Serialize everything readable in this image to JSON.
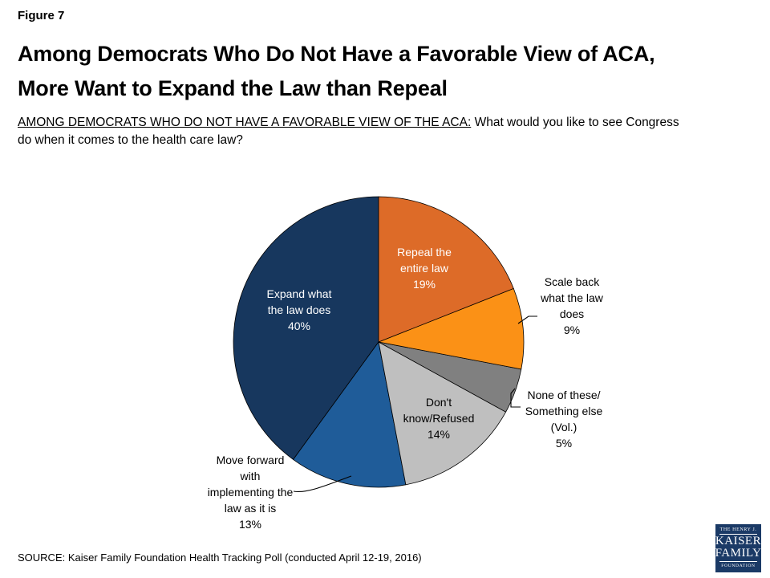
{
  "page": {
    "background": "#FFFFFF"
  },
  "header": {
    "figure_label": "Figure 7",
    "title_lines": [
      "Among Democrats Who Do Not Have a Favorable View of ACA,",
      "More Want to Expand the Law than Repeal"
    ],
    "subtitle_underlined": "AMONG DEMOCRATS WHO DO NOT HAVE A FAVORABLE VIEW OF THE ACA:",
    "subtitle_rest": " What would you like to see Congress\ndo when it comes to the health care law?"
  },
  "chart_data": {
    "type": "pie",
    "title": "",
    "unit": "%",
    "start_angle": "12 o'clock",
    "direction": "clockwise",
    "slices": [
      {
        "id": "repeal",
        "label": "Repeal the entire law",
        "value": 19,
        "color": "#DD6B28",
        "label_lines": [
          "Repeal the",
          "entire law",
          "19%"
        ],
        "label_placement": "inside",
        "label_color": "#FFFFFF"
      },
      {
        "id": "scale-back",
        "label": "Scale back what the law does",
        "value": 9,
        "color": "#FB9116",
        "label_lines": [
          "Scale back",
          "what the law",
          "does",
          "9%"
        ],
        "label_placement": "outside",
        "label_color": "#000000"
      },
      {
        "id": "none-something-else",
        "label": "None of these/Something else (Vol.)",
        "value": 5,
        "color": "#808080",
        "label_lines": [
          "None of these/",
          "Something else",
          "(Vol.)",
          "5%"
        ],
        "label_placement": "outside",
        "label_color": "#000000"
      },
      {
        "id": "dont-know-refused",
        "label": "Don't know/Refused",
        "value": 14,
        "color": "#BFBFBF",
        "label_lines": [
          "Don't",
          "know/Refused",
          "14%"
        ],
        "label_placement": "inside",
        "label_color": "#000000"
      },
      {
        "id": "move-forward",
        "label": "Move forward with implementing the law as it is",
        "value": 13,
        "color": "#1F5C99",
        "label_lines": [
          "Move forward",
          "with",
          "implementing the",
          "law as it is",
          "13%"
        ],
        "label_placement": "outside",
        "label_color": "#000000"
      },
      {
        "id": "expand",
        "label": "Expand what the law does",
        "value": 40,
        "color": "#17375E",
        "label_lines": [
          "Expand what",
          "the law does",
          "40%"
        ],
        "label_placement": "inside",
        "label_color": "#FFFFFF"
      }
    ]
  },
  "footer": {
    "source": "SOURCE: Kaiser Family Foundation Health Tracking Poll (conducted April 12-19, 2016)",
    "logo": {
      "line_top": "THE HENRY J.",
      "line_kaiser": "KAISER",
      "line_family": "FAMILY",
      "line_bottom": "FOUNDATION",
      "bg_color": "#1B3A66"
    }
  }
}
